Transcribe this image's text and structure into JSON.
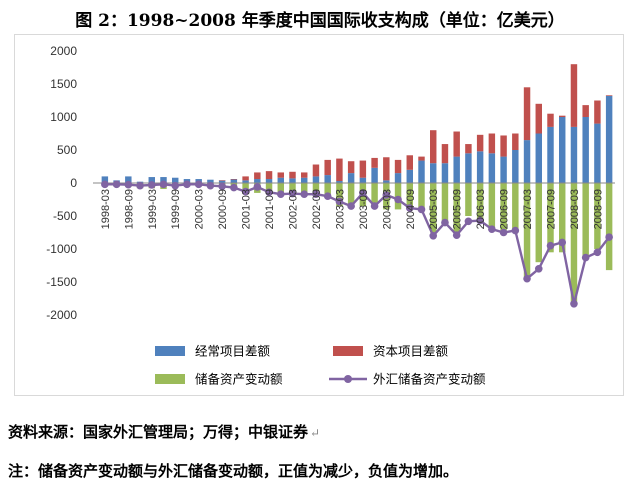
{
  "title": "图 2：1998~2008 年季度中国国际收支构成（单位：亿美元）",
  "source_note": "资料来源：国家外汇管理局；万得；中银证券",
  "footnote": "注：储备资产变动额与外汇储备变动额，正值为减少，负值为增加。",
  "colors": {
    "current": "#4f81bd",
    "capital": "#c0504d",
    "reserve": "#9bbb59",
    "fx": "#8064a2"
  },
  "chart_data": {
    "type": "bar",
    "stacked": true,
    "categories": [
      "1998-03",
      "1998-06",
      "1998-09",
      "1998-12",
      "1999-03",
      "1999-06",
      "1999-09",
      "1999-12",
      "2000-03",
      "2000-06",
      "2000-09",
      "2000-12",
      "2001-03",
      "2001-06",
      "2001-09",
      "2001-12",
      "2002-03",
      "2002-06",
      "2002-09",
      "2002-12",
      "2003-03",
      "2003-06",
      "2003-09",
      "2003-12",
      "2004-03",
      "2004-06",
      "2004-09",
      "2004-12",
      "2005-03",
      "2005-06",
      "2005-09",
      "2005-12",
      "2006-03",
      "2006-06",
      "2006-09",
      "2006-12",
      "2007-03",
      "2007-06",
      "2007-09",
      "2007-12",
      "2008-03",
      "2008-06",
      "2008-09",
      "2008-12"
    ],
    "xtick_labels": [
      "1998-03",
      "1998-09",
      "1999-03",
      "1999-09",
      "2000-03",
      "2000-09",
      "2001-03",
      "2001-09",
      "2002-03",
      "2002-09",
      "2003-03",
      "2003-09",
      "2004-03",
      "2004-09",
      "2005-03",
      "2005-09",
      "2006-03",
      "2006-09",
      "2007-03",
      "2007-09",
      "2008-03",
      "2008-09"
    ],
    "ylim": [
      -2000,
      2000
    ],
    "yticks": [
      -2000,
      -1500,
      -1000,
      -500,
      0,
      500,
      1000,
      1500,
      2000
    ],
    "grid": false,
    "legend_position": "bottom",
    "series": [
      {
        "name": "经常项目差额",
        "kind": "bar",
        "values": [
          100,
          40,
          100,
          20,
          90,
          90,
          80,
          60,
          60,
          50,
          40,
          60,
          40,
          60,
          60,
          80,
          70,
          80,
          100,
          120,
          30,
          150,
          80,
          230,
          40,
          150,
          200,
          340,
          300,
          300,
          400,
          450,
          480,
          450,
          400,
          500,
          650,
          750,
          850,
          1000,
          850,
          1000,
          900,
          1320
        ]
      },
      {
        "name": "资本项目差额",
        "kind": "bar",
        "values": [
          -20,
          -30,
          -40,
          -60,
          -50,
          -60,
          -40,
          -30,
          -10,
          -20,
          0,
          0,
          60,
          100,
          120,
          80,
          100,
          80,
          180,
          230,
          340,
          180,
          260,
          150,
          350,
          200,
          220,
          60,
          500,
          290,
          380,
          140,
          250,
          300,
          320,
          250,
          800,
          450,
          200,
          20,
          950,
          180,
          350,
          10
        ]
      },
      {
        "name": "储备资产变动额",
        "kind": "bar",
        "values": [
          -20,
          -10,
          -20,
          -20,
          -30,
          -30,
          -30,
          -20,
          -20,
          -30,
          -30,
          -40,
          -100,
          -150,
          -150,
          -150,
          -160,
          -150,
          -160,
          -200,
          -350,
          -350,
          -350,
          -350,
          -400,
          -400,
          -400,
          -400,
          -750,
          -600,
          -780,
          -500,
          -600,
          -700,
          -720,
          -720,
          -1450,
          -1200,
          -1050,
          -1050,
          -1800,
          -1150,
          -1000,
          -1320
        ]
      },
      {
        "name": "外汇储备资产变动额",
        "kind": "line",
        "values": [
          -20,
          -20,
          -25,
          -40,
          -30,
          -20,
          -40,
          -20,
          -20,
          -40,
          -50,
          -70,
          -130,
          -60,
          -140,
          -170,
          -160,
          -170,
          -170,
          -200,
          -280,
          -350,
          -150,
          -350,
          -180,
          -250,
          -380,
          -400,
          -800,
          -600,
          -790,
          -580,
          -570,
          -700,
          -750,
          -720,
          -1450,
          -1300,
          -950,
          -900,
          -1830,
          -1130,
          -1050,
          -820
        ]
      }
    ]
  }
}
